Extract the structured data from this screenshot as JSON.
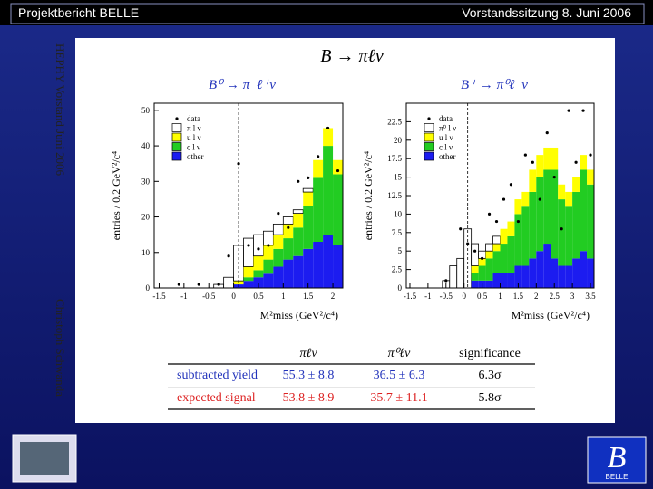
{
  "header": {
    "left": "Projektbericht BELLE",
    "right": "Vorstandssitzung 8. Juni 2006"
  },
  "side_text": {
    "top": "HEPHY Vorstand Juni 2006",
    "bottom": "Christoph Schwanda"
  },
  "title": "B → πℓν",
  "logo_text": "BELLE",
  "chart_data": [
    {
      "type": "histogram",
      "title": "B⁰ → π⁻ℓ⁺ν",
      "x_label": "M²miss (GeV²/c⁴)",
      "y_label": "entries / 0.2 GeV²/c⁴",
      "bins": [
        -1.6,
        -1.4,
        -1.2,
        -1.0,
        -0.8,
        -0.6,
        -0.4,
        -0.2,
        0.0,
        0.2,
        0.4,
        0.6,
        0.8,
        1.0,
        1.2,
        1.4,
        1.6,
        1.8,
        2.0,
        2.2
      ],
      "xlim": [
        -1.6,
        2.2
      ],
      "xticks": [
        -1.5,
        -1,
        -0.5,
        0,
        0.5,
        1,
        1.5,
        2
      ],
      "ylim": [
        0,
        52
      ],
      "yticks": [
        0,
        10,
        20,
        30,
        40,
        50
      ],
      "cut": 0.1,
      "legend": "upper left",
      "series": [
        {
          "name": "data",
          "color": "#000000",
          "values": [
            null,
            null,
            1,
            null,
            1,
            null,
            1,
            9,
            35,
            12,
            11,
            12,
            21,
            17,
            30,
            31,
            37,
            45,
            33
          ]
        },
        {
          "name": "π l ν",
          "color": "#ffffff",
          "values": [
            0,
            0,
            0,
            0,
            0,
            0,
            1,
            3,
            10,
            8,
            6,
            4,
            3,
            2,
            1,
            1,
            0,
            0,
            0
          ]
        },
        {
          "name": "u l ν",
          "color": "#ffff00",
          "values": [
            0,
            0,
            0,
            0,
            0,
            0,
            0,
            0,
            1,
            3,
            4,
            4,
            4,
            4,
            4,
            4,
            5,
            5,
            4
          ]
        },
        {
          "name": "c l ν",
          "color": "#22cc22",
          "values": [
            0,
            0,
            0,
            0,
            0,
            0,
            0,
            0,
            0,
            1,
            2,
            4,
            5,
            6,
            8,
            12,
            18,
            25,
            20
          ]
        },
        {
          "name": "other",
          "color": "#1c1cf0",
          "values": [
            0,
            0,
            0,
            0,
            0,
            0,
            0,
            0,
            1,
            2,
            3,
            4,
            6,
            8,
            9,
            11,
            13,
            15,
            12
          ]
        }
      ]
    },
    {
      "type": "histogram",
      "title": "B⁺ → π⁰ℓ⁻ν",
      "x_label": "M²miss (GeV²/c⁴)",
      "y_label": "entries / 0.2 GeV²/c⁴",
      "bins": [
        -1.6,
        -1.4,
        -1.2,
        -1.0,
        -0.8,
        -0.6,
        -0.4,
        -0.2,
        0.0,
        0.2,
        0.4,
        0.6,
        0.8,
        1.0,
        1.2,
        1.4,
        1.6,
        1.8,
        2.0,
        2.2,
        2.4,
        2.6,
        2.8,
        3.0,
        3.2,
        3.4,
        3.6
      ],
      "xlim": [
        -1.6,
        3.6
      ],
      "xticks": [
        -1.5,
        -1,
        -0.5,
        0,
        0.5,
        1,
        1.5,
        2,
        2.5,
        3,
        3.5
      ],
      "ylim": [
        0,
        25
      ],
      "yticks": [
        0,
        2.5,
        5,
        7.5,
        10,
        12.5,
        15,
        17.5,
        20,
        22.5
      ],
      "cut": 0.1,
      "legend": "upper left",
      "series": [
        {
          "name": "data",
          "color": "#000000",
          "values": [
            null,
            null,
            null,
            null,
            null,
            1,
            null,
            8,
            6,
            5,
            4,
            10,
            9,
            12,
            14,
            9,
            18,
            17,
            12,
            21,
            15,
            8,
            24,
            17,
            24,
            18
          ]
        },
        {
          "name": "π⁰ l ν",
          "color": "#ffffff",
          "values": [
            0,
            0,
            0,
            0,
            0,
            1,
            3,
            4,
            8,
            3,
            1,
            1,
            1,
            0,
            0,
            0,
            0,
            0,
            0,
            0,
            0,
            0,
            0,
            0,
            0,
            0
          ]
        },
        {
          "name": "u l ν",
          "color": "#ffff00",
          "values": [
            0,
            0,
            0,
            0,
            0,
            0,
            0,
            0,
            0,
            1,
            1,
            1,
            1,
            2,
            2,
            2,
            2,
            3,
            3,
            3,
            3,
            2,
            2,
            2,
            2,
            2
          ]
        },
        {
          "name": "c l ν",
          "color": "#22cc22",
          "values": [
            0,
            0,
            0,
            0,
            0,
            0,
            0,
            0,
            0,
            1,
            2,
            3,
            3,
            4,
            5,
            7,
            8,
            9,
            10,
            10,
            12,
            9,
            8,
            9,
            11,
            10
          ]
        },
        {
          "name": "other",
          "color": "#1c1cf0",
          "values": [
            0,
            0,
            0,
            0,
            0,
            0,
            0,
            0,
            0,
            1,
            1,
            1,
            2,
            2,
            2,
            3,
            3,
            4,
            5,
            6,
            4,
            3,
            3,
            4,
            5,
            4
          ]
        }
      ]
    }
  ],
  "table": {
    "columns": [
      "πℓν",
      "π⁰ℓν",
      "significance"
    ],
    "rows": [
      [
        "subtracted yield",
        "55.3 ± 8.8",
        "36.5 ± 6.3",
        "6.3σ"
      ],
      [
        "expected signal",
        "53.8 ± 8.9",
        "35.7 ± 11.1",
        "5.8σ"
      ]
    ]
  }
}
